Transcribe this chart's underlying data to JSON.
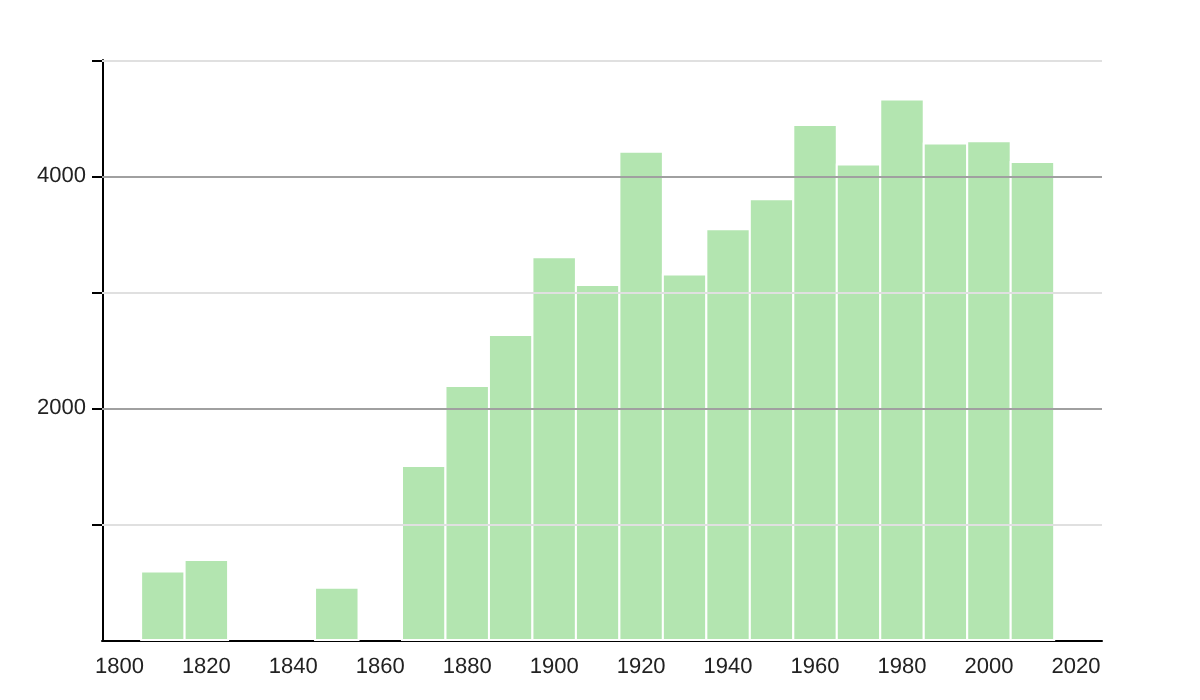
{
  "chart_data": {
    "type": "histogram",
    "bins": [
      1805,
      1815,
      1825,
      1835,
      1845,
      1855,
      1865,
      1875,
      1885,
      1895,
      1905,
      1915,
      1925,
      1935,
      1945,
      1955,
      1965,
      1975,
      1985,
      1995,
      2005,
      2015
    ],
    "values": [
      590,
      690,
      0,
      0,
      450,
      0,
      1500,
      2190,
      2630,
      3300,
      3060,
      4210,
      3150,
      3540,
      3800,
      4440,
      4100,
      4660,
      4280,
      4300,
      4120
    ],
    "color": "#b3e5b0",
    "xlim": [
      1796,
      2026
    ],
    "xticks": [
      1800,
      1820,
      1840,
      1860,
      1880,
      1900,
      1920,
      1940,
      1960,
      1980,
      2000,
      2020
    ],
    "ylim": [
      0,
      5000
    ],
    "yticks": [
      {
        "value": 1000,
        "label": null
      },
      2000,
      {
        "value": 3000,
        "label": null
      },
      4000,
      {
        "value": 5000,
        "label": null
      }
    ],
    "grid": "y"
  }
}
